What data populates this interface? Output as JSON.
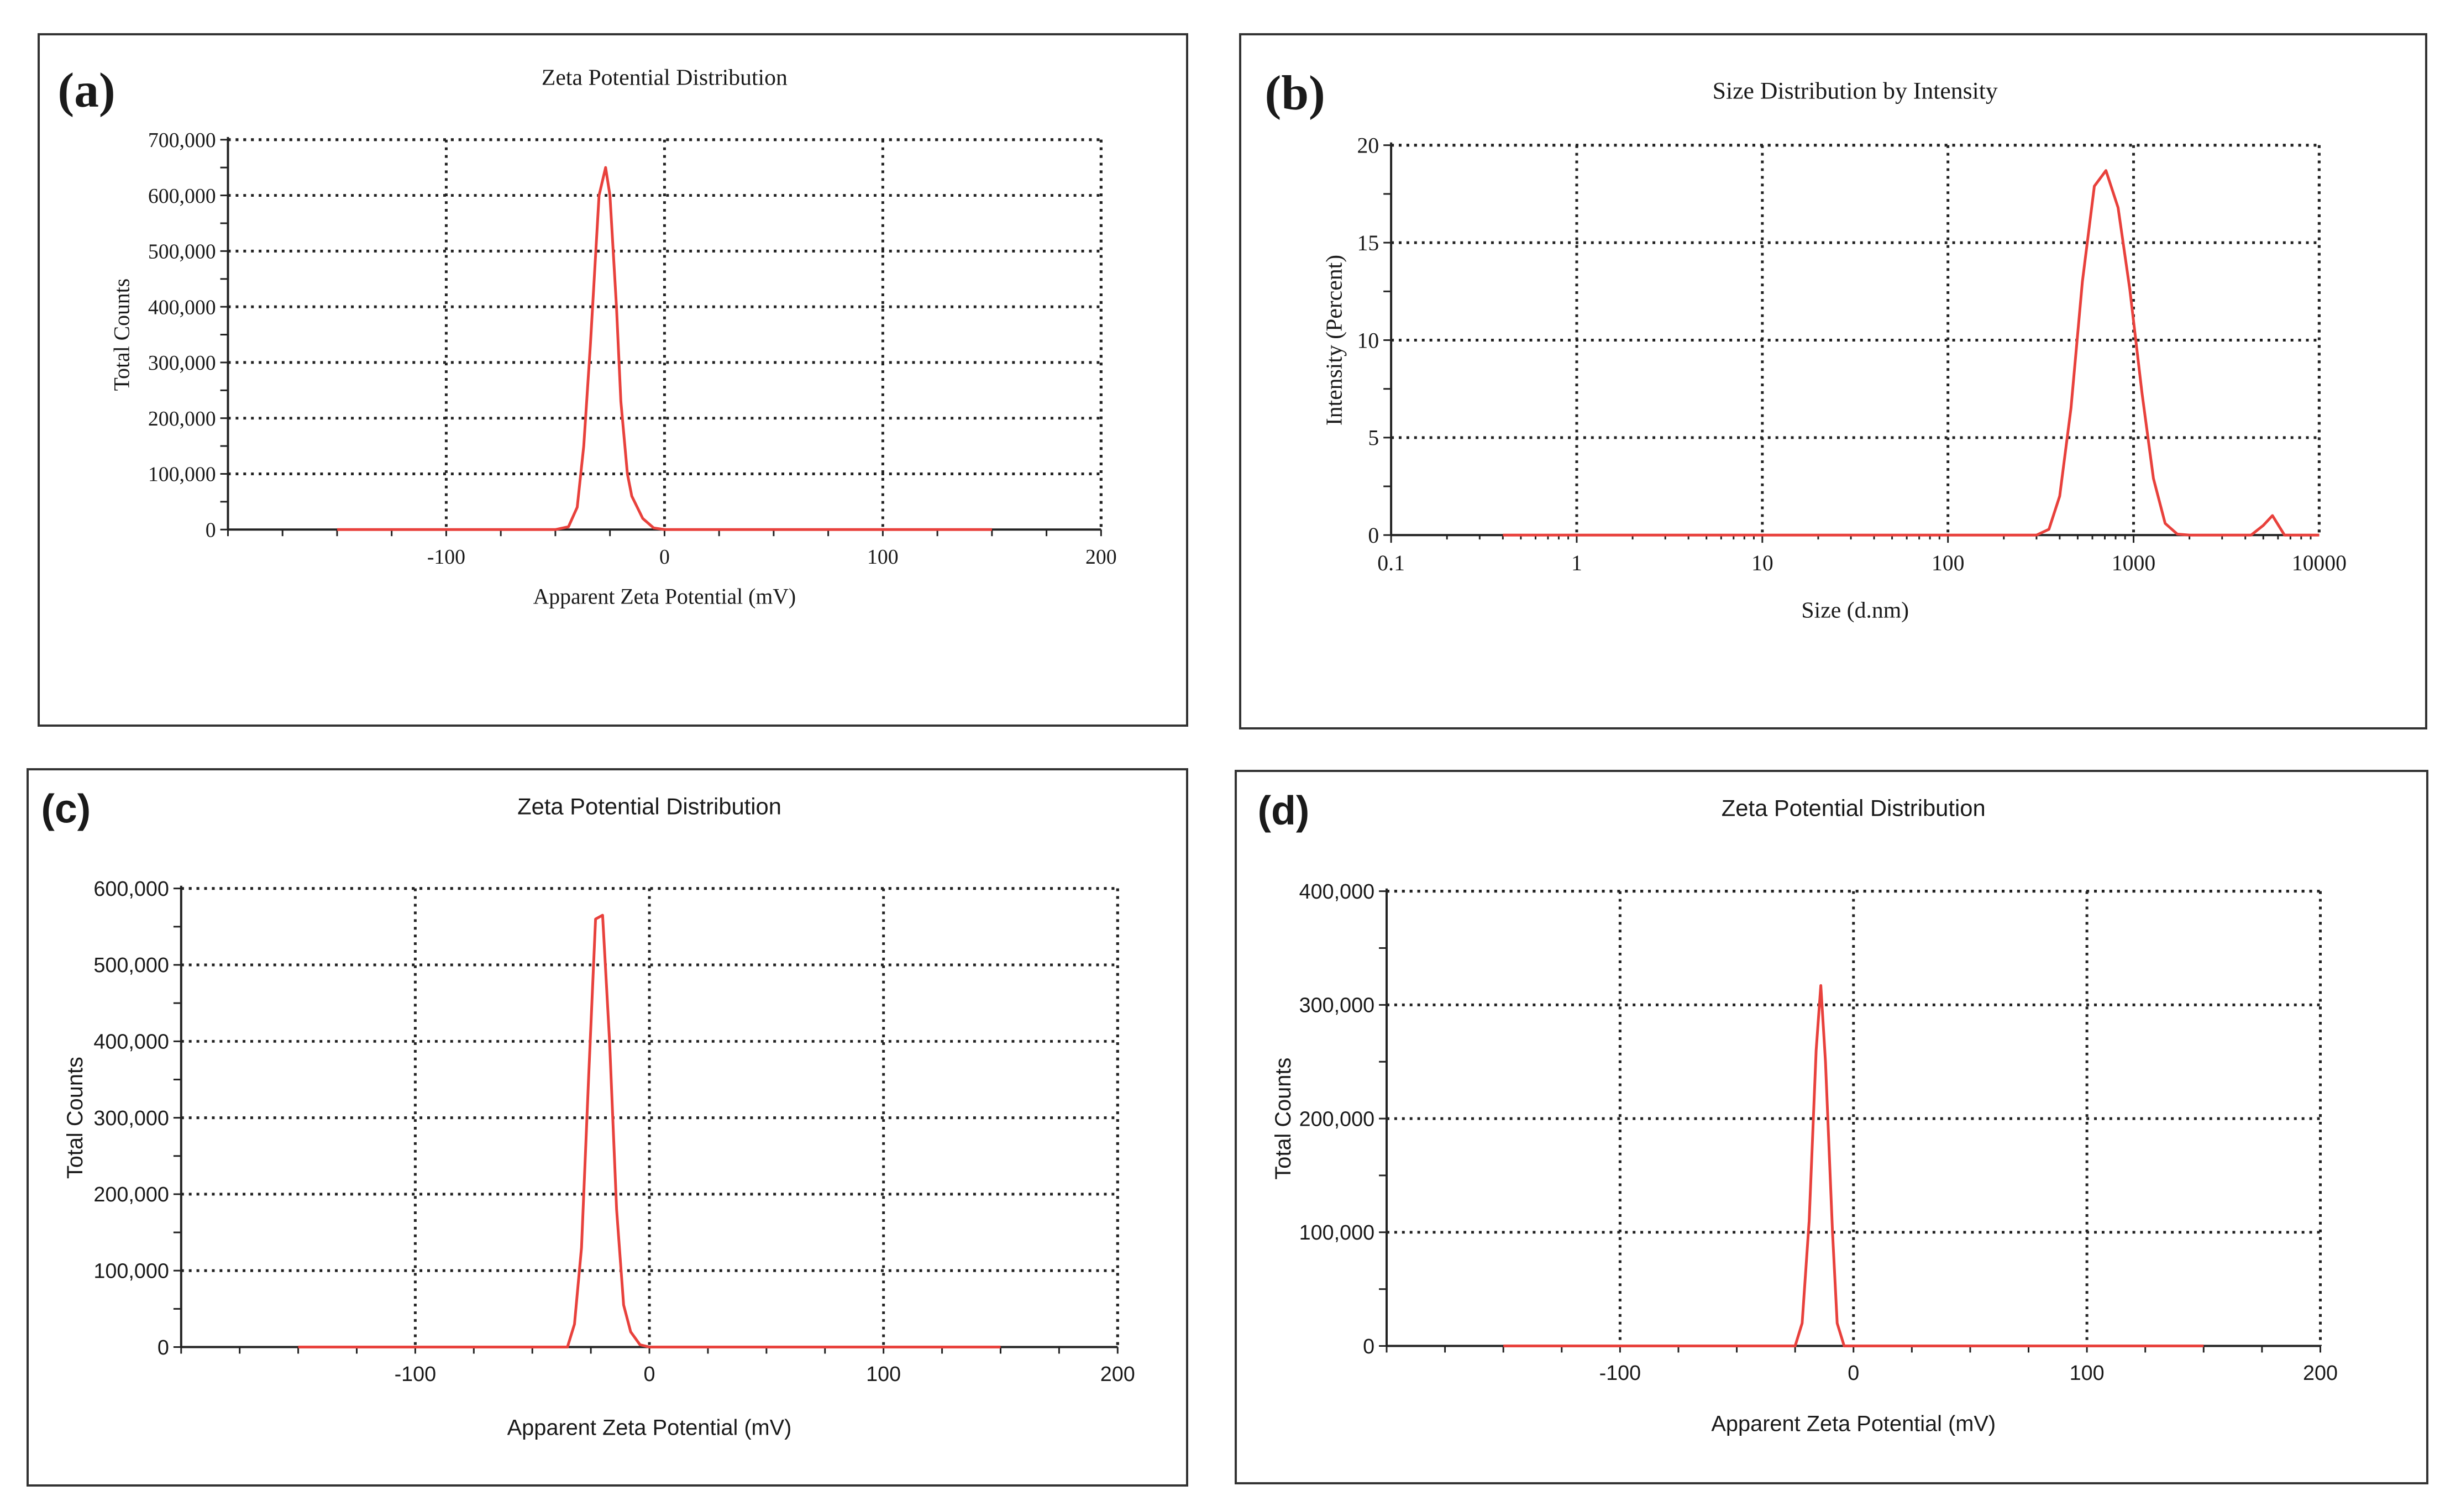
{
  "colors": {
    "curve": "#e8413c",
    "grid": "#222222",
    "axis": "#222222",
    "frame": "#333333"
  },
  "chart_data": [
    {
      "id": "a",
      "panel_label": "(a)",
      "type": "line",
      "title": "Zeta Potential Distribution",
      "xlabel": "Apparent  Zeta Potential (mV)",
      "ylabel": "Total Counts",
      "xlim": [
        -200,
        200
      ],
      "ylim": [
        0,
        700000
      ],
      "xscale": "linear",
      "xticks": [
        -100,
        0,
        100,
        200
      ],
      "xtick_labels": [
        "-100",
        "0",
        "100",
        "200"
      ],
      "yticks": [
        0,
        100000,
        200000,
        300000,
        400000,
        500000,
        600000,
        700000
      ],
      "ytick_labels": [
        "0",
        "100,000",
        "200,000",
        "300,000",
        "400,000",
        "500,000",
        "600,000",
        "700,000"
      ],
      "grid": true,
      "x": [
        -150,
        -50,
        -44,
        -40,
        -37,
        -34,
        -30,
        -27,
        -25,
        -22,
        -20,
        -17,
        -15,
        -10,
        -5,
        0,
        150
      ],
      "y": [
        0,
        0,
        5000,
        40000,
        150000,
        330000,
        600000,
        650000,
        600000,
        400000,
        230000,
        100000,
        60000,
        20000,
        3000,
        0,
        0
      ]
    },
    {
      "id": "b",
      "panel_label": "(b)",
      "type": "line",
      "title": "Size Distribution by Intensity",
      "xlabel": "Size (d.nm)",
      "ylabel": "Intensity  (Percent)",
      "xlim": [
        0.1,
        10000
      ],
      "ylim": [
        0,
        20
      ],
      "xscale": "log",
      "xticks": [
        0.1,
        1,
        10,
        100,
        1000,
        10000
      ],
      "xtick_labels": [
        "0.1",
        "1",
        "10",
        "100",
        "1000",
        "10000"
      ],
      "yticks": [
        0,
        5,
        10,
        15,
        20
      ],
      "ytick_labels": [
        "0",
        "5",
        "10",
        "15",
        "20"
      ],
      "grid": true,
      "x": [
        0.4,
        300,
        350,
        400,
        460,
        530,
        615,
        710,
        825,
        955,
        1110,
        1280,
        1480,
        1720,
        2000,
        4300,
        5000,
        5600,
        6500,
        10000
      ],
      "y": [
        0,
        0,
        0.3,
        2.0,
        6.5,
        13.0,
        17.9,
        18.7,
        16.8,
        12.6,
        7.3,
        2.9,
        0.6,
        0.05,
        0,
        0,
        0.5,
        1.0,
        0,
        0
      ]
    },
    {
      "id": "c",
      "panel_label": "(c)",
      "type": "line",
      "title": "Zeta Potential Distribution",
      "xlabel": "Apparent Zeta Potential (mV)",
      "ylabel": "Total Counts",
      "xlim": [
        -200,
        200
      ],
      "ylim": [
        0,
        600000
      ],
      "xscale": "linear",
      "xticks": [
        -100,
        0,
        100,
        200
      ],
      "xtick_labels": [
        "-100",
        "0",
        "100",
        "200"
      ],
      "yticks": [
        0,
        100000,
        200000,
        300000,
        400000,
        500000,
        600000
      ],
      "ytick_labels": [
        "0",
        "100,000",
        "200,000",
        "300,000",
        "400,000",
        "500,000",
        "600,000"
      ],
      "grid": true,
      "x": [
        -150,
        -35,
        -32,
        -29,
        -26,
        -23,
        -20,
        -17,
        -14,
        -11,
        -8,
        -4,
        0,
        150
      ],
      "y": [
        0,
        0,
        30000,
        130000,
        350000,
        560000,
        565000,
        400000,
        180000,
        55000,
        20000,
        3000,
        0,
        0
      ]
    },
    {
      "id": "d",
      "panel_label": "(d)",
      "type": "line",
      "title": "Zeta Potential Distribution",
      "xlabel": "Apparent Zeta Potential (mV)",
      "ylabel": "Total Counts",
      "xlim": [
        -200,
        200
      ],
      "ylim": [
        0,
        400000
      ],
      "xscale": "linear",
      "xticks": [
        -100,
        0,
        100,
        200
      ],
      "xtick_labels": [
        "-100",
        "0",
        "100",
        "200"
      ],
      "yticks": [
        0,
        100000,
        200000,
        300000,
        400000
      ],
      "ytick_labels": [
        "0",
        "100,000",
        "200,000",
        "300,000",
        "400,000"
      ],
      "grid": true,
      "x": [
        -150,
        -25,
        -22,
        -19,
        -16,
        -14,
        -12,
        -9,
        -7,
        -4,
        150
      ],
      "y": [
        0,
        0,
        20000,
        110000,
        260000,
        317000,
        250000,
        100000,
        20000,
        0,
        0
      ]
    }
  ]
}
